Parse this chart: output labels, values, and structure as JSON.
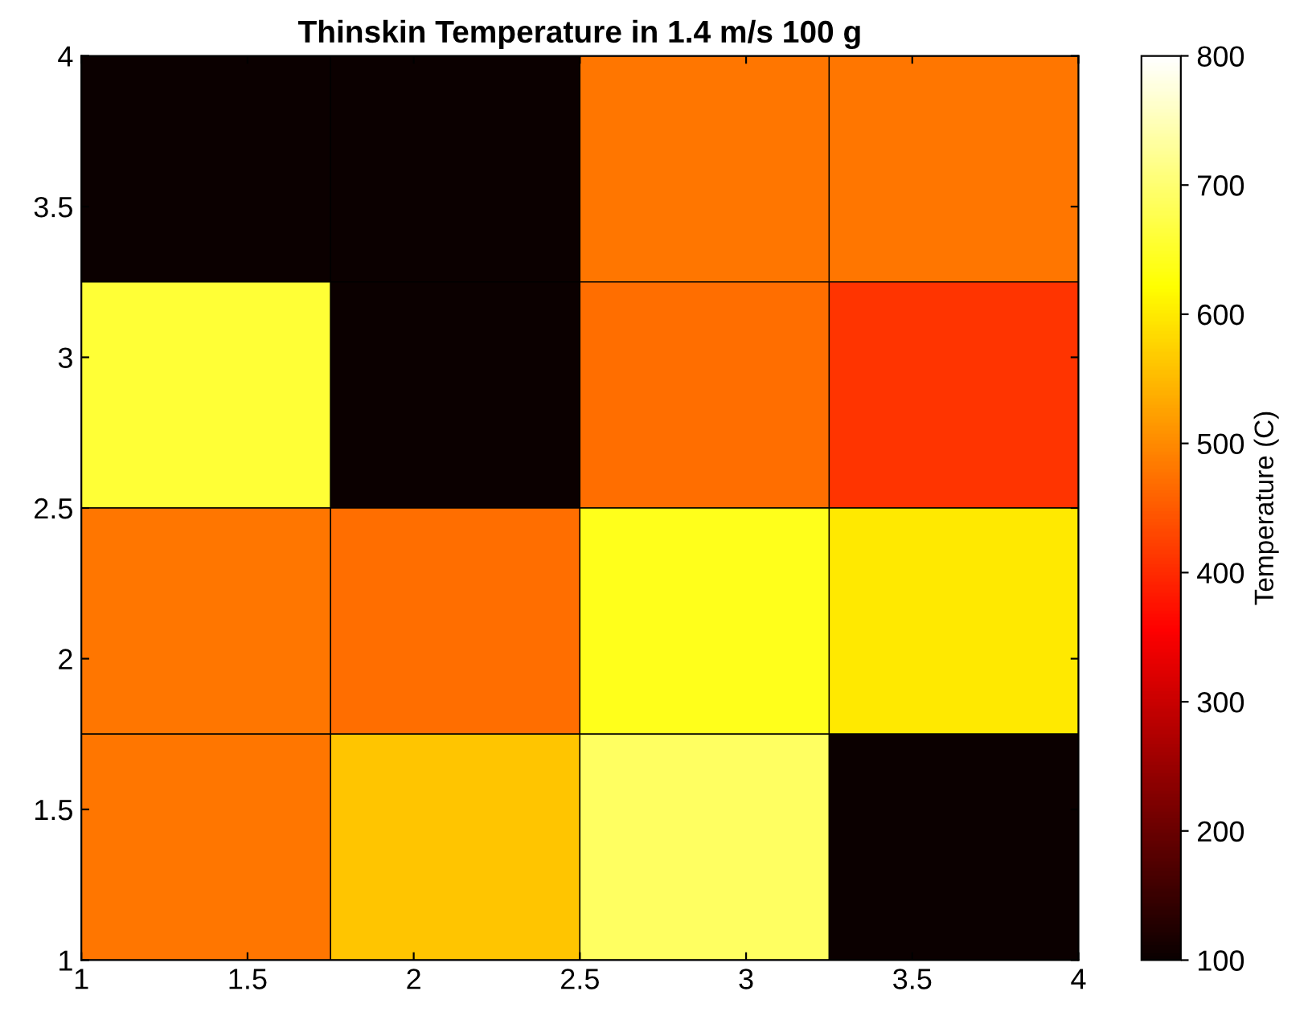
{
  "chart_data": {
    "type": "heatmap",
    "title": "Thinskin Temperature in 1.4 m/s 100 g",
    "clabel": "Temperature (C)",
    "cells": [
      [
        100,
        100,
        480,
        480
      ],
      [
        660,
        100,
        470,
        410
      ],
      [
        480,
        470,
        640,
        600
      ],
      [
        480,
        560,
        690,
        100
      ]
    ],
    "xlim": [
      1,
      4
    ],
    "xticks": [
      1,
      1.5,
      2,
      2.5,
      3,
      3.5,
      4
    ],
    "ylim": [
      1,
      4
    ],
    "yticks": [
      1,
      1.5,
      2,
      2.5,
      3,
      3.5,
      4
    ],
    "clim": [
      100,
      800
    ],
    "cticks": [
      100,
      200,
      300,
      400,
      500,
      600,
      700,
      800
    ]
  }
}
